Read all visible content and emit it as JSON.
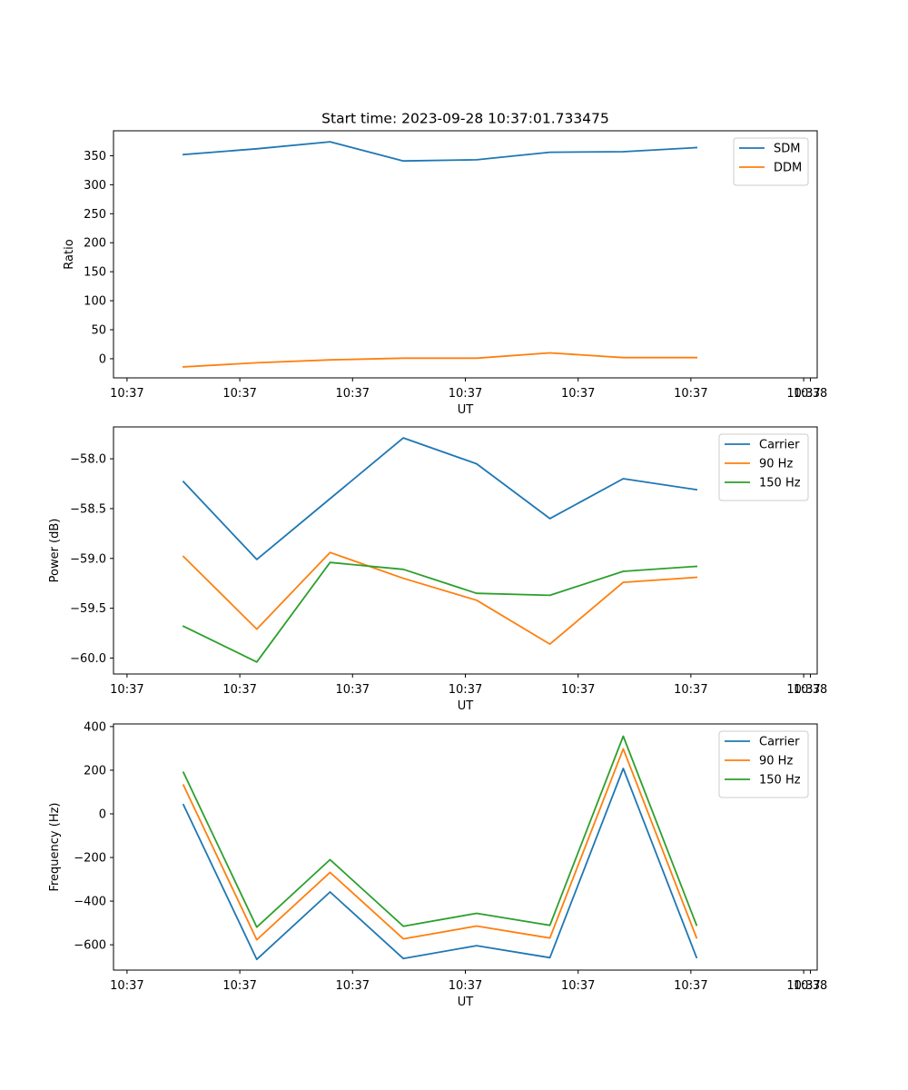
{
  "figure": {
    "title": "Start time: 2023-09-28 10:37:01.733475"
  },
  "chart_data": [
    {
      "type": "line",
      "name": "ratio",
      "title": "Start time: 2023-09-28 10:37:01.733475",
      "xlabel": "UT",
      "ylabel": "Ratio",
      "x_tick_labels": [
        "10:37",
        "10:37",
        "10:37",
        "10:37",
        "10:37",
        "10:37",
        "10:37"
      ],
      "x_tick_positions": [
        0,
        1.667,
        3.333,
        5.0,
        6.667,
        8.333,
        10.0
      ],
      "x_tick_end_label": "10:38",
      "xlim": [
        -0.2,
        10.2
      ],
      "x": [
        0.833,
        1.917,
        3.0,
        4.083,
        5.167,
        6.25,
        7.333,
        8.417
      ],
      "ylim": [
        -33,
        393
      ],
      "y_ticks": [
        0,
        50,
        100,
        150,
        200,
        250,
        300,
        350
      ],
      "legend": "top-right",
      "series": [
        {
          "name": "SDM",
          "color": "#1f77b4",
          "values": [
            352,
            362,
            374,
            341,
            343,
            356,
            357,
            364
          ]
        },
        {
          "name": "DDM",
          "color": "#ff7f0e",
          "values": [
            -14,
            -7,
            -2,
            1,
            1,
            10,
            2,
            2
          ]
        }
      ]
    },
    {
      "type": "line",
      "name": "power",
      "title": "",
      "xlabel": "UT",
      "ylabel": "Power (dB)",
      "x_tick_labels": [
        "10:37",
        "10:37",
        "10:37",
        "10:37",
        "10:37",
        "10:37",
        "10:37"
      ],
      "x_tick_positions": [
        0,
        1.667,
        3.333,
        5.0,
        6.667,
        8.333,
        10.0
      ],
      "x_tick_end_label": "10:38",
      "xlim": [
        -0.2,
        10.2
      ],
      "x": [
        0.833,
        1.917,
        3.0,
        4.083,
        5.167,
        6.25,
        7.333,
        8.417
      ],
      "ylim": [
        -60.16,
        -57.68
      ],
      "y_ticks": [
        -60.0,
        -59.5,
        -59.0,
        -58.5,
        -58.0
      ],
      "y_tick_labels": [
        "−60.0",
        "−59.5",
        "−59.0",
        "−58.5",
        "−58.0"
      ],
      "legend": "top-right",
      "series": [
        {
          "name": "Carrier",
          "color": "#1f77b4",
          "values": [
            -58.23,
            -59.01,
            -58.4,
            -57.79,
            -58.05,
            -58.6,
            -58.2,
            -58.31
          ]
        },
        {
          "name": "90 Hz",
          "color": "#ff7f0e",
          "values": [
            -58.98,
            -59.71,
            -58.94,
            -59.2,
            -59.42,
            -59.86,
            -59.24,
            -59.19
          ]
        },
        {
          "name": "150 Hz",
          "color": "#2ca02c",
          "values": [
            -59.68,
            -60.04,
            -59.04,
            -59.11,
            -59.35,
            -59.37,
            -59.13,
            -59.08
          ]
        }
      ]
    },
    {
      "type": "line",
      "name": "frequency",
      "title": "",
      "xlabel": "UT",
      "ylabel": "Frequency (Hz)",
      "x_tick_labels": [
        "10:37",
        "10:37",
        "10:37",
        "10:37",
        "10:37",
        "10:37",
        "10:37"
      ],
      "x_tick_positions": [
        0,
        1.667,
        3.333,
        5.0,
        6.667,
        8.333,
        10.0
      ],
      "x_tick_end_label": "10:38",
      "xlim": [
        -0.2,
        10.2
      ],
      "x": [
        0.833,
        1.917,
        3.0,
        4.083,
        5.167,
        6.25,
        7.333,
        8.417
      ],
      "ylim": [
        -716,
        412
      ],
      "y_ticks": [
        -600,
        -400,
        -200,
        0,
        200,
        400
      ],
      "y_tick_labels": [
        "−600",
        "−400",
        "−200",
        "0",
        "200",
        "400"
      ],
      "legend": "top-right",
      "series": [
        {
          "name": "Carrier",
          "color": "#1f77b4",
          "values": [
            42,
            -667,
            -358,
            -663,
            -604,
            -659,
            208,
            -658
          ]
        },
        {
          "name": "90 Hz",
          "color": "#ff7f0e",
          "values": [
            132,
            -577,
            -268,
            -573,
            -514,
            -569,
            298,
            -568
          ]
        },
        {
          "name": "150 Hz",
          "color": "#2ca02c",
          "values": [
            190,
            -519,
            -210,
            -515,
            -456,
            -511,
            356,
            -510
          ]
        }
      ]
    }
  ]
}
